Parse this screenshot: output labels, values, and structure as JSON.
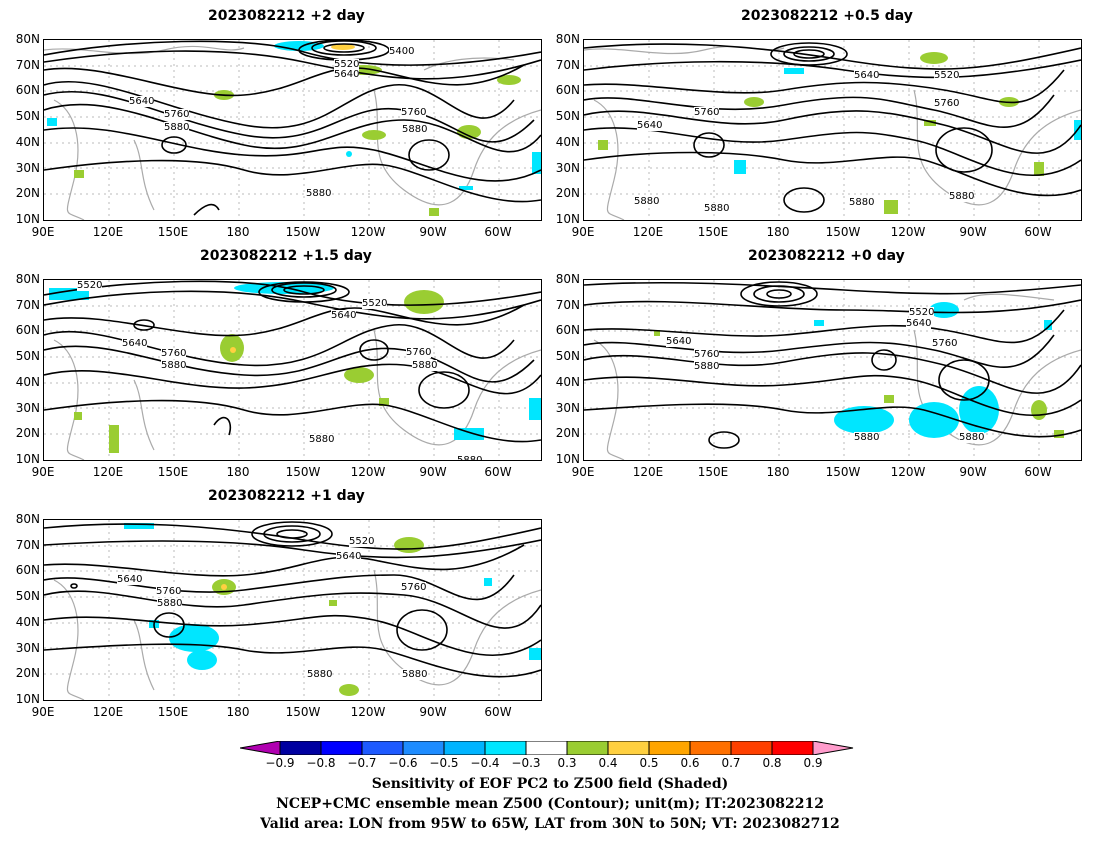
{
  "panels": [
    {
      "title": "2023082212 +2 day",
      "contour_labels": [
        "5400",
        "5520",
        "5640",
        "5640",
        "5760",
        "5880",
        "5760",
        "5880",
        "5880"
      ]
    },
    {
      "title": "2023082212 +0.5 day",
      "contour_labels": [
        "5640",
        "5520",
        "5640",
        "5760",
        "5760",
        "5880",
        "5880",
        "5880",
        "5880"
      ]
    },
    {
      "title": "2023082212 +1.5 day",
      "contour_labels": [
        "5520",
        "5520",
        "5640",
        "5640",
        "5760",
        "5880",
        "5760",
        "5880",
        "5880",
        "5880"
      ]
    },
    {
      "title": "2023082212 +0 day",
      "contour_labels": [
        "5520",
        "5640",
        "5640",
        "5760",
        "5880",
        "5760",
        "5880",
        "5880"
      ]
    },
    {
      "title": "2023082212 +1 day",
      "contour_labels": [
        "5520",
        "5640",
        "5640",
        "5760",
        "5880",
        "5760",
        "5880",
        "5880"
      ]
    }
  ],
  "lat_labels": [
    "80N",
    "70N",
    "60N",
    "50N",
    "40N",
    "30N",
    "20N",
    "10N"
  ],
  "lon_labels": [
    "90E",
    "120E",
    "150E",
    "180",
    "150W",
    "120W",
    "90W",
    "60W"
  ],
  "colorbar": {
    "labels": [
      "-0.9",
      "-0.8",
      "-0.7",
      "-0.6",
      "-0.5",
      "-0.4",
      "-0.3",
      "0.3",
      "0.4",
      "0.5",
      "0.6",
      "0.7",
      "0.8",
      "0.9"
    ],
    "colors": [
      "#b000b0",
      "#0000a0",
      "#0000ff",
      "#1e5aff",
      "#1e8cff",
      "#00b4ff",
      "#00e6ff",
      "#ffffff",
      "#9acd32",
      "#ffd040",
      "#ffa500",
      "#ff7000",
      "#ff4000",
      "#ff0000",
      "#ff9ccc"
    ]
  },
  "caption": {
    "line1": "Sensitivity of EOF PC2 to Z500 field (Shaded)",
    "line2": "NCEP+CMC ensemble mean Z500 (Contour); unit(m); IT:2023082212",
    "line3": "Valid area: LON from 95W to 65W, LAT from 30N to 50N; VT: 2023082712"
  }
}
